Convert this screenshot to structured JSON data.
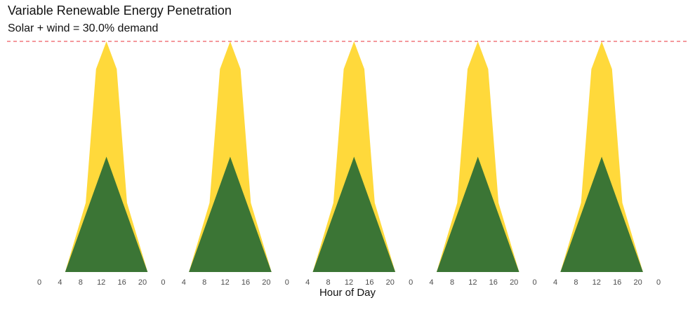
{
  "chart_data": {
    "type": "area",
    "title": "Variable Renewable Energy Penetration",
    "subtitle": "Solar + wind = 30.0% demand",
    "xlabel": "Hour of Day",
    "ylabel": "",
    "grid": false,
    "legend": "none",
    "days": 5,
    "tick_hours": [
      0,
      4,
      8,
      12,
      16,
      20
    ],
    "ylim": [
      0,
      1
    ],
    "reference_line": {
      "value": 1.0,
      "style": "dashed",
      "color": "#e8303a"
    },
    "series": [
      {
        "key": "solar",
        "color": "#ffd93b",
        "x": [
          5,
          9,
          11,
          13,
          15,
          17,
          21
        ],
        "values": [
          0,
          0.3,
          0.88,
          1.0,
          0.88,
          0.3,
          0
        ]
      },
      {
        "key": "wind",
        "color": "#3b7535",
        "x": [
          5,
          9,
          13,
          21
        ],
        "values": [
          0,
          0.25,
          0.5,
          0
        ]
      }
    ],
    "series_points_per_day": "repeated identically for each of 5 days",
    "final_tick": "0"
  }
}
